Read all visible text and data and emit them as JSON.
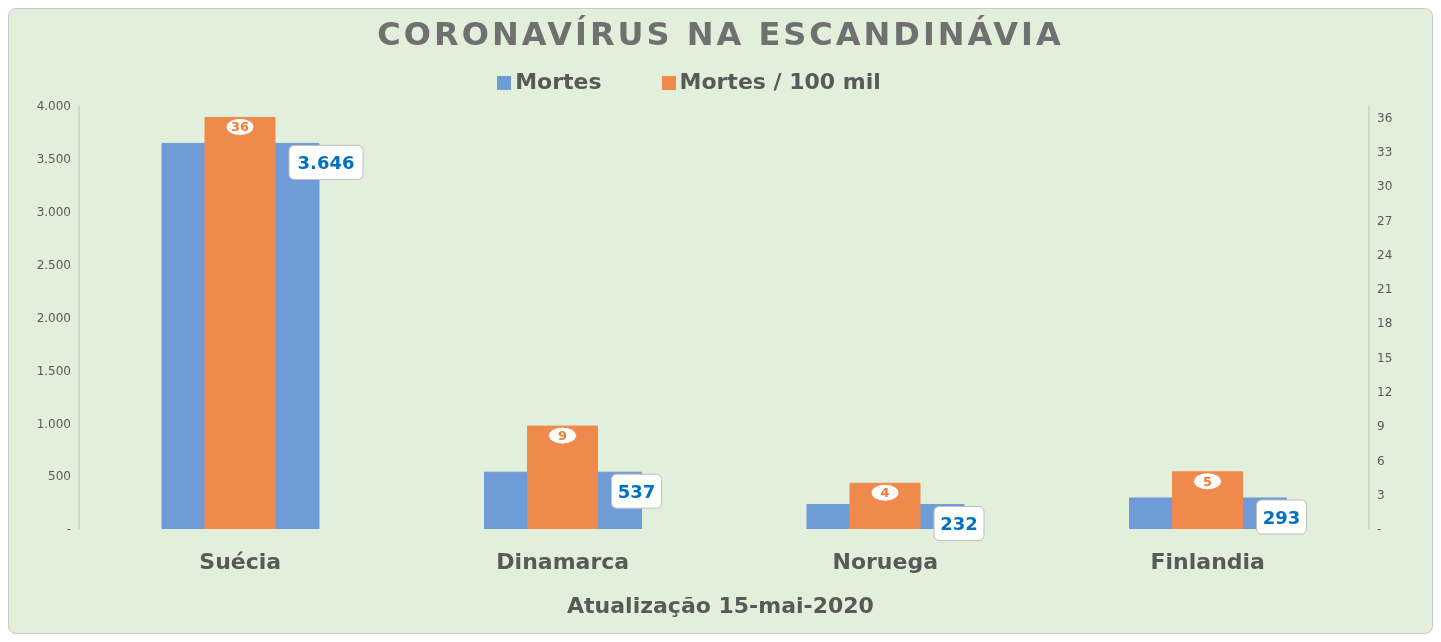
{
  "chart_data": {
    "type": "bar",
    "title": "CORONAVÍRUS NA ESCANDINÁVIA",
    "xlabel": "Atualização 15-mai-2020",
    "categories": [
      "Suécia",
      "Dinamarca",
      "Noruega",
      "Finlandia"
    ],
    "series": [
      {
        "name": "Mortes",
        "color": "#6f9bd6",
        "values": [
          3646,
          537,
          232,
          293
        ],
        "value_labels": [
          "3.646",
          "537",
          "232",
          "293"
        ]
      },
      {
        "name": "Mortes / 100 mil",
        "color": "#f0894c",
        "values": [
          36,
          9,
          4,
          5
        ],
        "value_labels": [
          "36",
          "9",
          "4",
          "5"
        ],
        "axis": "y2"
      }
    ],
    "ylim": [
      0,
      4000
    ],
    "yticks": [
      {
        "value": 0,
        "label": "-"
      },
      {
        "value": 500,
        "label": "500"
      },
      {
        "value": 1000,
        "label": "1.000"
      },
      {
        "value": 1500,
        "label": "1.500"
      },
      {
        "value": 2000,
        "label": "2.000"
      },
      {
        "value": 2500,
        "label": "2.500"
      },
      {
        "value": 3000,
        "label": "3.000"
      },
      {
        "value": 3500,
        "label": "3.500"
      },
      {
        "value": 4000,
        "label": "4.000"
      }
    ],
    "y2lim": [
      0,
      37
    ],
    "y2ticks": [
      {
        "value": 0,
        "label": "-"
      },
      3,
      6,
      9,
      12,
      15,
      18,
      21,
      24,
      27,
      30,
      33,
      36
    ],
    "grid": false,
    "legend": "top"
  }
}
